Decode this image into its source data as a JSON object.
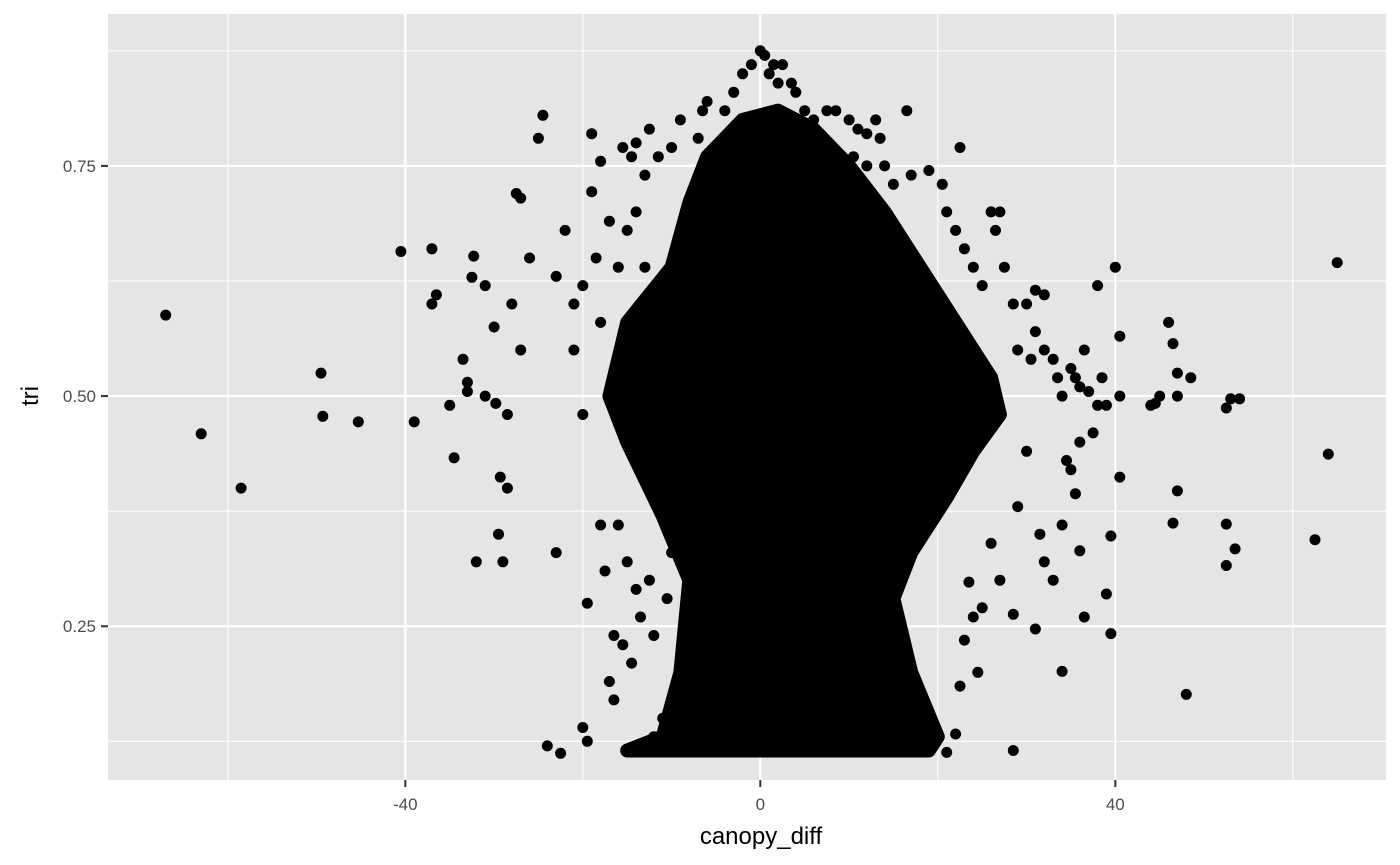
{
  "chart_data": {
    "type": "scatter",
    "title": "",
    "xlabel": "canopy_diff",
    "ylabel": "tri",
    "xlim": [
      -73.5,
      70.5
    ],
    "ylim": [
      0.083,
      0.915
    ],
    "x_major_ticks": [
      -40,
      0,
      40
    ],
    "x_tick_labels": [
      "-40",
      "0",
      "40"
    ],
    "x_minor_ticks": [
      -60,
      -20,
      20,
      60
    ],
    "y_major_ticks": [
      0.25,
      0.5,
      0.75
    ],
    "y_tick_labels": [
      "0.25",
      "0.50",
      "0.75"
    ],
    "y_minor_ticks": [
      0.125,
      0.375,
      0.625,
      0.875
    ],
    "grid": true,
    "panel_background": "#e5e5e5",
    "point_color": "#000000",
    "dense_region": [
      [
        -15,
        0.115
      ],
      [
        -11,
        0.13
      ],
      [
        -9,
        0.2
      ],
      [
        -8,
        0.3
      ],
      [
        -11,
        0.37
      ],
      [
        -15,
        0.45
      ],
      [
        -17,
        0.5
      ],
      [
        -15,
        0.58
      ],
      [
        -10,
        0.64
      ],
      [
        -8,
        0.71
      ],
      [
        -6,
        0.76
      ],
      [
        -2,
        0.8
      ],
      [
        2,
        0.81
      ],
      [
        6,
        0.79
      ],
      [
        10,
        0.75
      ],
      [
        14,
        0.7
      ],
      [
        18,
        0.64
      ],
      [
        22,
        0.58
      ],
      [
        26,
        0.52
      ],
      [
        27,
        0.48
      ],
      [
        24,
        0.44
      ],
      [
        21,
        0.39
      ],
      [
        17,
        0.33
      ],
      [
        15,
        0.28
      ],
      [
        17,
        0.2
      ],
      [
        20,
        0.13
      ],
      [
        19,
        0.115
      ]
    ],
    "points": [
      [
        -67,
        0.588
      ],
      [
        -63,
        0.459
      ],
      [
        -58.5,
        0.4
      ],
      [
        -49.5,
        0.525
      ],
      [
        -49.3,
        0.478
      ],
      [
        -45.3,
        0.472
      ],
      [
        -40.5,
        0.657
      ],
      [
        -39,
        0.472
      ],
      [
        -37,
        0.6
      ],
      [
        -36.5,
        0.61
      ],
      [
        -37,
        0.66
      ],
      [
        -35,
        0.49
      ],
      [
        -34.5,
        0.433
      ],
      [
        -33.5,
        0.54
      ],
      [
        -33,
        0.505
      ],
      [
        -33,
        0.515
      ],
      [
        -32.5,
        0.629
      ],
      [
        -32.3,
        0.652
      ],
      [
        -32,
        0.32
      ],
      [
        -31,
        0.5
      ],
      [
        -31,
        0.62
      ],
      [
        -30,
        0.575
      ],
      [
        -29.8,
        0.492
      ],
      [
        -29.3,
        0.412
      ],
      [
        -29.5,
        0.35
      ],
      [
        -29,
        0.32
      ],
      [
        -28.5,
        0.48
      ],
      [
        -28.5,
        0.4
      ],
      [
        -28,
        0.6
      ],
      [
        -27.5,
        0.72
      ],
      [
        -27,
        0.715
      ],
      [
        -27,
        0.55
      ],
      [
        -26,
        0.65
      ],
      [
        -25,
        0.78
      ],
      [
        -24.5,
        0.805
      ],
      [
        -24,
        0.12
      ],
      [
        -23,
        0.63
      ],
      [
        -23,
        0.33
      ],
      [
        -22.5,
        0.112
      ],
      [
        -22,
        0.68
      ],
      [
        -21,
        0.6
      ],
      [
        -21,
        0.55
      ],
      [
        -20,
        0.62
      ],
      [
        -20,
        0.48
      ],
      [
        -20,
        0.14
      ],
      [
        -19.5,
        0.275
      ],
      [
        -19.5,
        0.125
      ],
      [
        -19,
        0.785
      ],
      [
        -19,
        0.722
      ],
      [
        -18.5,
        0.65
      ],
      [
        -18,
        0.755
      ],
      [
        -18,
        0.58
      ],
      [
        -18,
        0.36
      ],
      [
        -17.5,
        0.31
      ],
      [
        -17,
        0.69
      ],
      [
        -17,
        0.19
      ],
      [
        -16.5,
        0.24
      ],
      [
        -16.5,
        0.17
      ],
      [
        -16,
        0.64
      ],
      [
        -16,
        0.36
      ],
      [
        -15.5,
        0.77
      ],
      [
        -15.5,
        0.23
      ],
      [
        -15,
        0.68
      ],
      [
        -15,
        0.32
      ],
      [
        -14.5,
        0.76
      ],
      [
        -14.5,
        0.21
      ],
      [
        -14,
        0.775
      ],
      [
        -14,
        0.7
      ],
      [
        -14,
        0.29
      ],
      [
        -13.5,
        0.26
      ],
      [
        -13,
        0.74
      ],
      [
        -13,
        0.64
      ],
      [
        -12.5,
        0.79
      ],
      [
        -12.5,
        0.3
      ],
      [
        -12,
        0.13
      ],
      [
        -12,
        0.24
      ],
      [
        -11.5,
        0.76
      ],
      [
        -11,
        0.15
      ],
      [
        -10.5,
        0.28
      ],
      [
        -10,
        0.77
      ],
      [
        -10,
        0.33
      ],
      [
        -9.5,
        0.15
      ],
      [
        -9,
        0.8
      ],
      [
        -8.5,
        0.22
      ],
      [
        -7,
        0.78
      ],
      [
        -6.5,
        0.81
      ],
      [
        -6,
        0.82
      ],
      [
        -4,
        0.81
      ],
      [
        -3,
        0.83
      ],
      [
        -2,
        0.85
      ],
      [
        -1,
        0.86
      ],
      [
        0,
        0.875
      ],
      [
        0.5,
        0.87
      ],
      [
        1,
        0.85
      ],
      [
        1.5,
        0.86
      ],
      [
        2,
        0.84
      ],
      [
        2.5,
        0.86
      ],
      [
        3.5,
        0.84
      ],
      [
        4,
        0.83
      ],
      [
        5,
        0.81
      ],
      [
        6,
        0.8
      ],
      [
        7.5,
        0.81
      ],
      [
        8.5,
        0.81
      ],
      [
        10,
        0.8
      ],
      [
        11,
        0.79
      ],
      [
        12,
        0.785
      ],
      [
        13,
        0.8
      ],
      [
        13.5,
        0.78
      ],
      [
        16.5,
        0.81
      ],
      [
        10.5,
        0.76
      ],
      [
        12,
        0.75
      ],
      [
        14,
        0.75
      ],
      [
        15,
        0.73
      ],
      [
        17,
        0.74
      ],
      [
        19,
        0.745
      ],
      [
        20.5,
        0.73
      ],
      [
        21,
        0.7
      ],
      [
        22.5,
        0.77
      ],
      [
        22,
        0.68
      ],
      [
        23,
        0.66
      ],
      [
        24,
        0.64
      ],
      [
        26,
        0.7
      ],
      [
        26.5,
        0.68
      ],
      [
        27,
        0.7
      ],
      [
        25,
        0.62
      ],
      [
        27.5,
        0.64
      ],
      [
        28.5,
        0.6
      ],
      [
        30,
        0.6
      ],
      [
        31,
        0.615
      ],
      [
        32,
        0.61
      ],
      [
        29,
        0.55
      ],
      [
        30.5,
        0.54
      ],
      [
        31,
        0.57
      ],
      [
        32,
        0.55
      ],
      [
        33,
        0.54
      ],
      [
        33.5,
        0.52
      ],
      [
        34,
        0.5
      ],
      [
        35,
        0.53
      ],
      [
        35.5,
        0.52
      ],
      [
        36,
        0.51
      ],
      [
        36.5,
        0.55
      ],
      [
        37,
        0.505
      ],
      [
        38,
        0.49
      ],
      [
        38.5,
        0.52
      ],
      [
        39,
        0.49
      ],
      [
        40.5,
        0.5
      ],
      [
        40,
        0.64
      ],
      [
        40.5,
        0.565
      ],
      [
        38,
        0.62
      ],
      [
        44,
        0.49
      ],
      [
        44.5,
        0.492
      ],
      [
        46,
        0.58
      ],
      [
        46.5,
        0.557
      ],
      [
        47,
        0.525
      ],
      [
        47,
        0.5
      ],
      [
        48.5,
        0.52
      ],
      [
        45,
        0.5
      ],
      [
        52.5,
        0.487
      ],
      [
        53,
        0.497
      ],
      [
        54,
        0.497
      ],
      [
        65,
        0.645
      ],
      [
        64,
        0.437
      ],
      [
        62.5,
        0.344
      ],
      [
        53.5,
        0.334
      ],
      [
        52.5,
        0.361
      ],
      [
        52.5,
        0.316
      ],
      [
        47,
        0.397
      ],
      [
        46.5,
        0.362
      ],
      [
        48,
        0.176
      ],
      [
        40.5,
        0.412
      ],
      [
        39.5,
        0.348
      ],
      [
        39,
        0.285
      ],
      [
        39.5,
        0.242
      ],
      [
        36.5,
        0.26
      ],
      [
        36,
        0.332
      ],
      [
        35.5,
        0.394
      ],
      [
        34,
        0.36
      ],
      [
        34,
        0.201
      ],
      [
        33,
        0.3
      ],
      [
        32,
        0.32
      ],
      [
        31.5,
        0.35
      ],
      [
        31,
        0.247
      ],
      [
        30,
        0.44
      ],
      [
        29,
        0.38
      ],
      [
        28.5,
        0.263
      ],
      [
        28.5,
        0.115
      ],
      [
        27,
        0.3
      ],
      [
        26,
        0.34
      ],
      [
        25,
        0.27
      ],
      [
        24.5,
        0.2
      ],
      [
        24,
        0.26
      ],
      [
        23,
        0.235
      ],
      [
        22.5,
        0.185
      ],
      [
        22,
        0.133
      ],
      [
        21,
        0.113
      ],
      [
        23.5,
        0.298
      ],
      [
        37.5,
        0.46
      ],
      [
        36,
        0.45
      ],
      [
        35,
        0.42
      ],
      [
        34.5,
        0.43
      ]
    ]
  }
}
